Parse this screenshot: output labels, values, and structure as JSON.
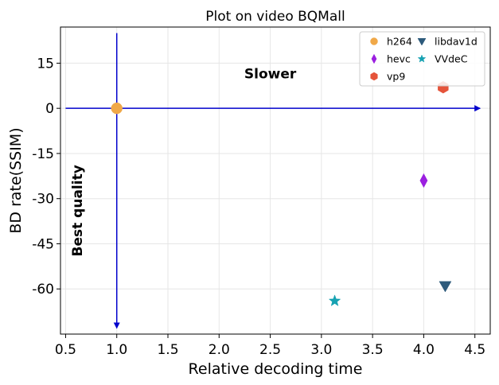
{
  "chart_data": {
    "type": "scatter",
    "title": "Plot on video BQMall",
    "xlabel": "Relative decoding time",
    "ylabel": "BD rate(SSIM)",
    "xlim": [
      0.45,
      4.65
    ],
    "ylim": [
      -75,
      27
    ],
    "xticks": [
      0.5,
      1.0,
      1.5,
      2.0,
      2.5,
      3.0,
      3.5,
      4.0,
      4.5
    ],
    "xtick_labels": [
      "0.5",
      "1.0",
      "1.5",
      "2.0",
      "2.5",
      "3.0",
      "3.5",
      "4.0",
      "4.5"
    ],
    "yticks": [
      15,
      0,
      -15,
      -30,
      -45,
      -60
    ],
    "ytick_labels": [
      "15",
      "0",
      "-15",
      "-30",
      "-45",
      "-60"
    ],
    "grid": true,
    "legend_position": "top-right",
    "series": [
      {
        "name": "h264",
        "marker": "circle",
        "color": "#f0a848",
        "x": 1.0,
        "y": 0
      },
      {
        "name": "hevc",
        "marker": "thin-diamond",
        "color": "#9b1fe0",
        "x": 4.0,
        "y": -24
      },
      {
        "name": "vp9",
        "marker": "hexagon",
        "color": "#e5533a",
        "x": 4.19,
        "y": 7
      },
      {
        "name": "libdav1d",
        "marker": "triangle-down",
        "color": "#2d5a7b",
        "x": 4.21,
        "y": -59
      },
      {
        "name": "VVdeC",
        "marker": "star",
        "color": "#17a2b2",
        "x": 3.13,
        "y": -64
      }
    ],
    "reference_lines": {
      "horizontal": {
        "y": 0,
        "x_from": 0.5,
        "x_to": 4.55,
        "color": "#0000cc"
      },
      "vertical": {
        "x": 1.0,
        "y_from": 25,
        "y_to": -73,
        "color": "#0000cc"
      }
    },
    "annotations": [
      {
        "text": "Slower",
        "x": 2.5,
        "y": 10,
        "bold": true
      },
      {
        "text": "Best quality",
        "x": 0.66,
        "y": -34,
        "bold": true,
        "rotation": -90
      }
    ]
  }
}
